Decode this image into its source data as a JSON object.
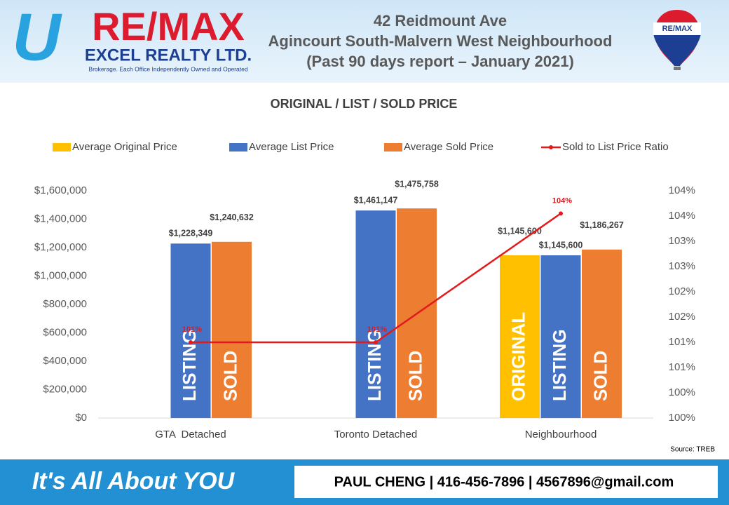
{
  "header": {
    "logo_letter": "U",
    "brand": "RE/MAX",
    "company": "EXCEL REALTY LTD.",
    "tagline": "Brokerage. Each Office Independently Owned and Operated",
    "title_lines": [
      "42 Reidmount Ave",
      "Agincourt South-Malvern West Neighbourhood",
      "(Past 90 days report – January 2021)"
    ],
    "balloon_text": "RE/MAX"
  },
  "footer": {
    "slogan": "It's All About YOU",
    "contact": "PAUL CHENG | 416-456-7896 | 4567896@gmail.com"
  },
  "chart_data": {
    "type": "bar",
    "title": "ORIGINAL / LIST / SOLD PRICE",
    "source": "Source: TREB",
    "categories": [
      "GTA  Detached",
      "Toronto Detached",
      "Neighbourhood"
    ],
    "series": [
      {
        "name": "Average Original Price",
        "color": "#ffc000",
        "inner_label": "ORIGINAL",
        "values": [
          null,
          null,
          1145600
        ],
        "value_labels": [
          null,
          null,
          "$1,145,600"
        ]
      },
      {
        "name": "Average List Price",
        "color": "#4472c4",
        "inner_label": "LISTING",
        "values": [
          1228349,
          1461147,
          1145600
        ],
        "value_labels": [
          "$1,228,349",
          "$1,461,147",
          "$1,145,600"
        ]
      },
      {
        "name": "Average Sold Price",
        "color": "#ed7d31",
        "inner_label": "SOLD",
        "values": [
          1240632,
          1475758,
          1186267
        ],
        "value_labels": [
          "$1,240,632",
          "$1,475,758",
          "$1,186,267"
        ]
      },
      {
        "name": "Sold to List Price Ratio",
        "color": "#e31a1c",
        "type": "line",
        "axis": "y2",
        "values": [
          101.0,
          101.0,
          103.55
        ],
        "value_labels": [
          "101%",
          "101%",
          "104%"
        ]
      }
    ],
    "ylim": [
      0,
      1600000
    ],
    "yticks": [
      {
        "value": 0,
        "label": "$0"
      },
      {
        "value": 200000,
        "label": "$200,000"
      },
      {
        "value": 400000,
        "label": "$400,000"
      },
      {
        "value": 600000,
        "label": "$600,000"
      },
      {
        "value": 800000,
        "label": "$800,000"
      },
      {
        "value": 1000000,
        "label": "$1,000,000"
      },
      {
        "value": 1200000,
        "label": "$1,200,000"
      },
      {
        "value": 1400000,
        "label": "$1,400,000"
      },
      {
        "value": 1600000,
        "label": "$1,600,000"
      }
    ],
    "y2lim": [
      99.5,
      104
    ],
    "y2ticks": [
      {
        "value": 99.5,
        "label": "100%"
      },
      {
        "value": 100,
        "label": "100%"
      },
      {
        "value": 100.5,
        "label": "101%"
      },
      {
        "value": 101,
        "label": "101%"
      },
      {
        "value": 101.5,
        "label": "102%"
      },
      {
        "value": 102,
        "label": "102%"
      },
      {
        "value": 102.5,
        "label": "103%"
      },
      {
        "value": 103,
        "label": "103%"
      },
      {
        "value": 103.5,
        "label": "104%"
      },
      {
        "value": 104,
        "label": "104%"
      }
    ],
    "grid": false,
    "legend": "top"
  }
}
